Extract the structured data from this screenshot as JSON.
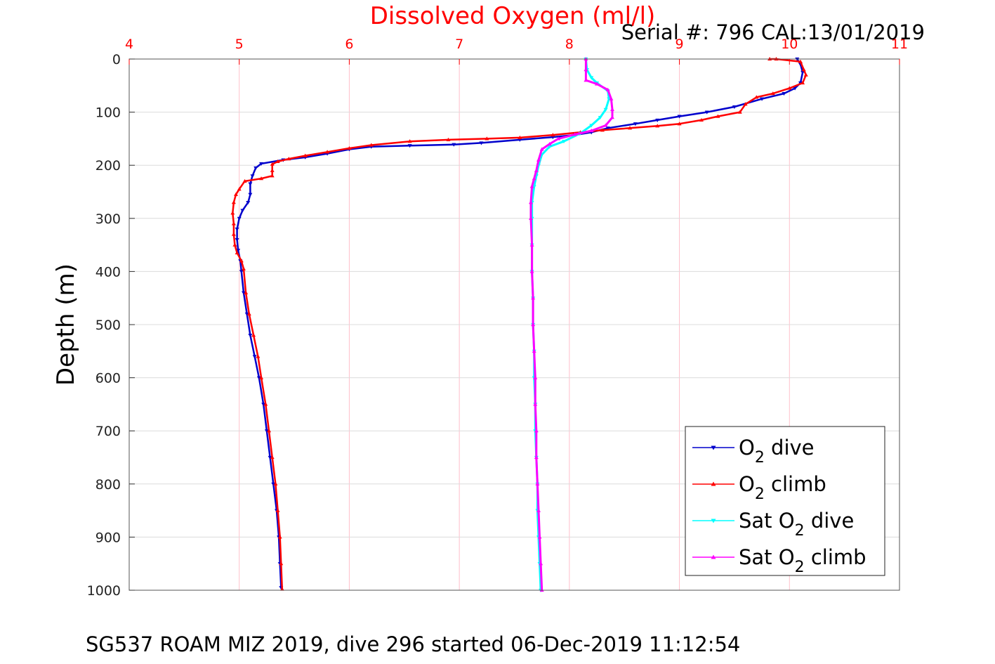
{
  "chart_data": {
    "type": "line",
    "title": "Dissolved Oxygen (ml/l)",
    "serial_text": "Serial #: 796  CAL:13/01/2019",
    "footer": "SG537 ROAM MIZ 2019, dive 296 started 06-Dec-2019 11:12:54",
    "ylabel": "Depth (m)",
    "xlim": [
      4,
      11
    ],
    "ylim": [
      0,
      1000
    ],
    "y_reversed": true,
    "x_axis_position": "top",
    "grid": true,
    "xticks": [
      4,
      5,
      6,
      7,
      8,
      9,
      10,
      11
    ],
    "yticks": [
      0,
      100,
      200,
      300,
      400,
      500,
      600,
      700,
      800,
      900,
      1000
    ],
    "legend_position": "bottom-right",
    "colors": {
      "title": "#ff0000",
      "x_tick_labels": "#ff0000",
      "grid": "#ffc0cb",
      "grid_light": "#dcdcdc"
    },
    "series": [
      {
        "legend": {
          "base": "O",
          "sub": "2",
          "suffix": " dive",
          "prefix": ""
        },
        "color": "#0000cc",
        "marker": "triangle-down",
        "points": [
          [
            10.07,
            0
          ],
          [
            10.1,
            10
          ],
          [
            10.12,
            25
          ],
          [
            10.1,
            45
          ],
          [
            10.05,
            55
          ],
          [
            9.95,
            65
          ],
          [
            9.75,
            75
          ],
          [
            9.5,
            90
          ],
          [
            9.25,
            100
          ],
          [
            9.0,
            108
          ],
          [
            8.8,
            115
          ],
          [
            8.6,
            122
          ],
          [
            8.35,
            130
          ],
          [
            8.2,
            138
          ],
          [
            8.05,
            143
          ],
          [
            7.85,
            147
          ],
          [
            7.55,
            152
          ],
          [
            7.2,
            158
          ],
          [
            6.95,
            161
          ],
          [
            6.55,
            163
          ],
          [
            6.2,
            165
          ],
          [
            6.0,
            170
          ],
          [
            5.8,
            178
          ],
          [
            5.6,
            185
          ],
          [
            5.4,
            190
          ],
          [
            5.2,
            197
          ],
          [
            5.15,
            205
          ],
          [
            5.12,
            220
          ],
          [
            5.1,
            235
          ],
          [
            5.1,
            255
          ],
          [
            5.08,
            270
          ],
          [
            5.03,
            285
          ],
          [
            5.0,
            300
          ],
          [
            4.98,
            320
          ],
          [
            4.98,
            340
          ],
          [
            4.99,
            360
          ],
          [
            5.01,
            380
          ],
          [
            5.02,
            400
          ],
          [
            5.04,
            440
          ],
          [
            5.07,
            480
          ],
          [
            5.1,
            520
          ],
          [
            5.14,
            560
          ],
          [
            5.18,
            600
          ],
          [
            5.22,
            650
          ],
          [
            5.25,
            700
          ],
          [
            5.28,
            750
          ],
          [
            5.31,
            800
          ],
          [
            5.34,
            850
          ],
          [
            5.36,
            900
          ],
          [
            5.37,
            950
          ],
          [
            5.38,
            995
          ]
        ]
      },
      {
        "legend": {
          "base": "O",
          "sub": "2",
          "suffix": " climb",
          "prefix": ""
        },
        "color": "#ff0000",
        "marker": "triangle-up",
        "points": [
          [
            9.82,
            0
          ],
          [
            9.88,
            0
          ],
          [
            10.1,
            5
          ],
          [
            10.13,
            20
          ],
          [
            10.15,
            30
          ],
          [
            10.12,
            45
          ],
          [
            10.0,
            55
          ],
          [
            9.85,
            65
          ],
          [
            9.7,
            72
          ],
          [
            9.6,
            85
          ],
          [
            9.55,
            100
          ],
          [
            9.35,
            108
          ],
          [
            9.2,
            115
          ],
          [
            9.0,
            122
          ],
          [
            8.8,
            126
          ],
          [
            8.55,
            130
          ],
          [
            8.3,
            134
          ],
          [
            8.1,
            138
          ],
          [
            7.85,
            143
          ],
          [
            7.55,
            148
          ],
          [
            7.25,
            150
          ],
          [
            6.9,
            152
          ],
          [
            6.55,
            155
          ],
          [
            6.2,
            162
          ],
          [
            6.0,
            168
          ],
          [
            5.8,
            175
          ],
          [
            5.6,
            182
          ],
          [
            5.45,
            188
          ],
          [
            5.35,
            193
          ],
          [
            5.3,
            198
          ],
          [
            5.3,
            210
          ],
          [
            5.3,
            220
          ],
          [
            5.2,
            225
          ],
          [
            5.05,
            230
          ],
          [
            5.0,
            245
          ],
          [
            4.97,
            255
          ],
          [
            4.95,
            270
          ],
          [
            4.94,
            290
          ],
          [
            4.95,
            310
          ],
          [
            4.95,
            330
          ],
          [
            4.96,
            350
          ],
          [
            4.98,
            365
          ],
          [
            5.02,
            380
          ],
          [
            5.04,
            395
          ],
          [
            5.06,
            440
          ],
          [
            5.09,
            480
          ],
          [
            5.13,
            520
          ],
          [
            5.17,
            560
          ],
          [
            5.2,
            600
          ],
          [
            5.24,
            650
          ],
          [
            5.27,
            700
          ],
          [
            5.3,
            750
          ],
          [
            5.33,
            800
          ],
          [
            5.35,
            850
          ],
          [
            5.37,
            900
          ],
          [
            5.38,
            950
          ],
          [
            5.39,
            998
          ]
        ]
      },
      {
        "legend": {
          "base": "O",
          "sub": "2",
          "suffix": " dive",
          "prefix": "Sat "
        },
        "color": "#00ffff",
        "marker": "triangle-down",
        "points": [
          [
            8.15,
            0
          ],
          [
            8.16,
            20
          ],
          [
            8.2,
            35
          ],
          [
            8.25,
            45
          ],
          [
            8.35,
            60
          ],
          [
            8.36,
            75
          ],
          [
            8.33,
            95
          ],
          [
            8.28,
            110
          ],
          [
            8.2,
            125
          ],
          [
            8.1,
            140
          ],
          [
            7.95,
            155
          ],
          [
            7.82,
            165
          ],
          [
            7.75,
            180
          ],
          [
            7.72,
            200
          ],
          [
            7.7,
            220
          ],
          [
            7.68,
            240
          ],
          [
            7.66,
            270
          ],
          [
            7.66,
            300
          ],
          [
            7.66,
            350
          ],
          [
            7.66,
            400
          ],
          [
            7.67,
            450
          ],
          [
            7.67,
            500
          ],
          [
            7.68,
            550
          ],
          [
            7.68,
            600
          ],
          [
            7.69,
            650
          ],
          [
            7.69,
            700
          ],
          [
            7.7,
            750
          ],
          [
            7.71,
            800
          ],
          [
            7.71,
            850
          ],
          [
            7.72,
            900
          ],
          [
            7.73,
            950
          ],
          [
            7.74,
            1000
          ]
        ]
      },
      {
        "legend": {
          "base": "O",
          "sub": "2",
          "suffix": " climb",
          "prefix": "Sat "
        },
        "color": "#ff00ff",
        "marker": "triangle-up",
        "points": [
          [
            8.15,
            0
          ],
          [
            8.15,
            20
          ],
          [
            8.15,
            40
          ],
          [
            8.25,
            47
          ],
          [
            8.35,
            58
          ],
          [
            8.38,
            75
          ],
          [
            8.39,
            95
          ],
          [
            8.39,
            110
          ],
          [
            8.33,
            125
          ],
          [
            8.2,
            135
          ],
          [
            8.05,
            142
          ],
          [
            7.9,
            150
          ],
          [
            7.82,
            160
          ],
          [
            7.75,
            170
          ],
          [
            7.72,
            190
          ],
          [
            7.7,
            210
          ],
          [
            7.68,
            225
          ],
          [
            7.66,
            240
          ],
          [
            7.65,
            270
          ],
          [
            7.65,
            300
          ],
          [
            7.66,
            350
          ],
          [
            7.66,
            400
          ],
          [
            7.67,
            450
          ],
          [
            7.67,
            500
          ],
          [
            7.68,
            550
          ],
          [
            7.69,
            600
          ],
          [
            7.69,
            650
          ],
          [
            7.7,
            700
          ],
          [
            7.7,
            750
          ],
          [
            7.71,
            800
          ],
          [
            7.72,
            850
          ],
          [
            7.73,
            900
          ],
          [
            7.74,
            950
          ],
          [
            7.75,
            1000
          ]
        ]
      }
    ]
  }
}
